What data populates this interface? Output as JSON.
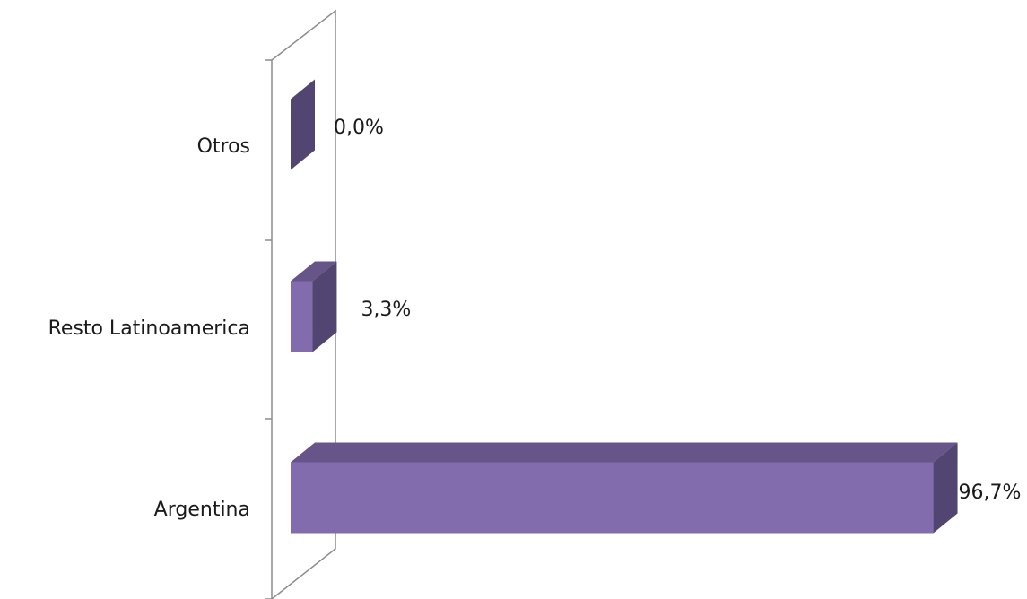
{
  "chart_data": {
    "type": "bar",
    "orientation": "horizontal",
    "style": "3d",
    "categories": [
      "Argentina",
      "Resto Latinoamerica",
      "Otros"
    ],
    "values": [
      96.7,
      3.3,
      0.0
    ],
    "value_labels": [
      "96,7%",
      "3,3%",
      "0,0%"
    ],
    "unit": "%",
    "xlim": [
      0,
      100
    ],
    "grid": false,
    "legend": "none",
    "colors": {
      "bar_front": "#826CAE",
      "bar_top": "#675488",
      "bar_side": "#524571",
      "axis_line": "#8c8c8c"
    }
  }
}
